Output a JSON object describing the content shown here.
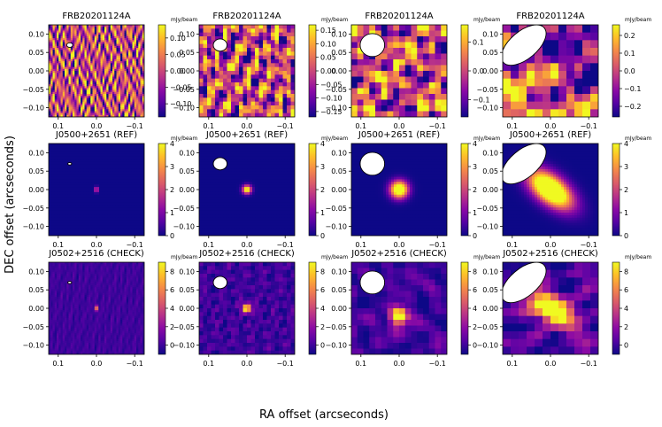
{
  "figure": {
    "xlabel": "RA offset (arcseconds)",
    "ylabel": "DEC offset (arcseconds)",
    "colorbar_unit": "mJy/beam",
    "colormap": [
      "#0d0887",
      "#5402a3",
      "#8b0aa5",
      "#b83289",
      "#db5c68",
      "#f48849",
      "#febd2a",
      "#f0f921"
    ]
  },
  "chart_data": [
    {
      "type": "heatmap",
      "title": "FRB20201124A",
      "x_ticks": [
        "0.1",
        "0.0",
        "−0.1"
      ],
      "y_ticks": [
        "0.10",
        "0.05",
        "0.00",
        "−0.05",
        "−0.10"
      ],
      "xlim": [
        0.125,
        -0.125
      ],
      "ylim": [
        -0.125,
        0.125
      ],
      "colorbar_ticks": [
        "0.10",
        "0.05",
        "0.00",
        "−0.05",
        "−0.10"
      ],
      "colorbar_range": [
        -0.14,
        0.14
      ],
      "beam": {
        "ra": 0.07,
        "dec": 0.07,
        "major": 0.008,
        "minor": 0.006,
        "angle": 0
      },
      "source": null,
      "texture": {
        "type": "noise",
        "scale": "fine"
      }
    },
    {
      "type": "heatmap",
      "title": "FRB20201124A",
      "x_ticks": [
        "0.1",
        "0.0",
        "−0.1"
      ],
      "y_ticks": [
        "0.10",
        "0.05",
        "0.00",
        "−0.05",
        "−0.10"
      ],
      "xlim": [
        0.125,
        -0.125
      ],
      "ylim": [
        -0.125,
        0.125
      ],
      "colorbar_ticks": [
        "0.15",
        "0.10",
        "0.05",
        "0.00",
        "−0.05",
        "−0.10",
        "−0.15"
      ],
      "colorbar_range": [
        -0.17,
        0.17
      ],
      "beam": {
        "ra": 0.07,
        "dec": 0.07,
        "major": 0.018,
        "minor": 0.016,
        "angle": 0
      },
      "source": null,
      "texture": {
        "type": "noise",
        "scale": "medium"
      }
    },
    {
      "type": "heatmap",
      "title": "FRB20201124A",
      "x_ticks": [
        "0.1",
        "0.0",
        "−0.1"
      ],
      "y_ticks": [
        "0.10",
        "0.05",
        "0.00",
        "−0.05",
        "−0.10"
      ],
      "xlim": [
        0.125,
        -0.125
      ],
      "ylim": [
        -0.125,
        0.125
      ],
      "colorbar_ticks": [
        "0.1",
        "0.0",
        "−0.1"
      ],
      "colorbar_range": [
        -0.16,
        0.16
      ],
      "beam": {
        "ra": 0.07,
        "dec": 0.07,
        "major": 0.032,
        "minor": 0.03,
        "angle": 0
      },
      "source": null,
      "texture": {
        "type": "noise",
        "scale": "coarse"
      }
    },
    {
      "type": "heatmap",
      "title": "FRB20201124A",
      "x_ticks": [
        "0.1",
        "0.0",
        "−0.1"
      ],
      "y_ticks": [
        "0.10",
        "0.05",
        "0.00",
        "−0.05",
        "−0.10"
      ],
      "xlim": [
        0.125,
        -0.125
      ],
      "ylim": [
        -0.125,
        0.125
      ],
      "colorbar_ticks": [
        "0.2",
        "0.1",
        "0.0",
        "−0.1",
        "−0.2"
      ],
      "colorbar_range": [
        -0.26,
        0.26
      ],
      "beam": {
        "ra": 0.07,
        "dec": 0.07,
        "major": 0.07,
        "minor": 0.036,
        "angle": 40
      },
      "source": null,
      "texture": {
        "type": "noise",
        "scale": "verycoarse"
      }
    },
    {
      "type": "heatmap",
      "title": "J0500+2651 (REF)",
      "x_ticks": [
        "0.1",
        "0.0",
        "−0.1"
      ],
      "y_ticks": [
        "0.10",
        "0.05",
        "0.00",
        "−0.05",
        "−0.10"
      ],
      "xlim": [
        0.125,
        -0.125
      ],
      "ylim": [
        -0.125,
        0.125
      ],
      "colorbar_ticks": [
        "4",
        "3",
        "2",
        "1",
        "0"
      ],
      "colorbar_range": [
        0,
        4
      ],
      "beam": {
        "ra": 0.07,
        "dec": 0.07,
        "major": 0.005,
        "minor": 0.003,
        "angle": 0
      },
      "source": {
        "ra": 0.0,
        "dec": 0.0,
        "peak": 4.2,
        "sx": 0.0025,
        "sy": 0.005,
        "angle": 0
      },
      "texture": {
        "type": "flat"
      }
    },
    {
      "type": "heatmap",
      "title": "J0500+2651 (REF)",
      "x_ticks": [
        "0.1",
        "0.0",
        "−0.1"
      ],
      "y_ticks": [
        "0.10",
        "0.05",
        "0.00",
        "−0.05",
        "−0.10"
      ],
      "xlim": [
        0.125,
        -0.125
      ],
      "ylim": [
        -0.125,
        0.125
      ],
      "colorbar_ticks": [
        "4",
        "3",
        "2",
        "1",
        "0"
      ],
      "colorbar_range": [
        0,
        4
      ],
      "beam": {
        "ra": 0.07,
        "dec": 0.07,
        "major": 0.018,
        "minor": 0.016,
        "angle": 0
      },
      "source": {
        "ra": 0.0,
        "dec": 0.0,
        "peak": 4.5,
        "sx": 0.008,
        "sy": 0.008,
        "angle": 0
      },
      "texture": {
        "type": "flat"
      }
    },
    {
      "type": "heatmap",
      "title": "J0500+2651 (REF)",
      "x_ticks": [
        "0.1",
        "0.0",
        "−0.1"
      ],
      "y_ticks": [
        "0.10",
        "0.05",
        "0.00",
        "−0.05",
        "−0.10"
      ],
      "xlim": [
        0.125,
        -0.125
      ],
      "ylim": [
        -0.125,
        0.125
      ],
      "colorbar_ticks": [
        "4",
        "3",
        "2",
        "1",
        "0"
      ],
      "colorbar_range": [
        0,
        4
      ],
      "beam": {
        "ra": 0.07,
        "dec": 0.07,
        "major": 0.032,
        "minor": 0.03,
        "angle": 0
      },
      "source": {
        "ra": 0.0,
        "dec": 0.0,
        "peak": 5.5,
        "sx": 0.016,
        "sy": 0.016,
        "angle": 0
      },
      "texture": {
        "type": "flat"
      }
    },
    {
      "type": "heatmap",
      "title": "J0500+2651 (REF)",
      "x_ticks": [
        "0.1",
        "0.0",
        "−0.1"
      ],
      "y_ticks": [
        "0.10",
        "0.05",
        "0.00",
        "−0.05",
        "−0.10"
      ],
      "xlim": [
        0.125,
        -0.125
      ],
      "ylim": [
        -0.125,
        0.125
      ],
      "colorbar_ticks": [
        "4",
        "3",
        "2",
        "1",
        "0"
      ],
      "colorbar_range": [
        0,
        4
      ],
      "beam": {
        "ra": 0.07,
        "dec": 0.07,
        "major": 0.07,
        "minor": 0.036,
        "angle": 40
      },
      "source": {
        "ra": 0.0,
        "dec": 0.0,
        "peak": 6.5,
        "sx": 0.046,
        "sy": 0.024,
        "angle": 40
      },
      "texture": {
        "type": "flat"
      }
    },
    {
      "type": "heatmap",
      "title": "J0502+2516 (CHECK)",
      "x_ticks": [
        "0.1",
        "0.0",
        "−0.1"
      ],
      "y_ticks": [
        "0.10",
        "0.05",
        "0.00",
        "−0.05",
        "−0.10"
      ],
      "xlim": [
        0.125,
        -0.125
      ],
      "ylim": [
        -0.125,
        0.125
      ],
      "colorbar_ticks": [
        "8",
        "6",
        "4",
        "2",
        "0"
      ],
      "colorbar_range": [
        -1,
        9
      ],
      "beam": {
        "ra": 0.07,
        "dec": 0.07,
        "major": 0.005,
        "minor": 0.003,
        "angle": 0
      },
      "source": {
        "ra": 0.0,
        "dec": 0.0,
        "peak": 9.5,
        "sx": 0.0025,
        "sy": 0.005,
        "angle": 0
      },
      "texture": {
        "type": "noise",
        "scale": "fine",
        "amp": 0.4
      }
    },
    {
      "type": "heatmap",
      "title": "J0502+2516 (CHECK)",
      "x_ticks": [
        "0.1",
        "0.0",
        "−0.1"
      ],
      "y_ticks": [
        "0.10",
        "0.05",
        "0.00",
        "−0.05",
        "−0.10"
      ],
      "xlim": [
        0.125,
        -0.125
      ],
      "ylim": [
        -0.125,
        0.125
      ],
      "colorbar_ticks": [
        "8",
        "6",
        "4",
        "2",
        "0"
      ],
      "colorbar_range": [
        -1,
        9
      ],
      "beam": {
        "ra": 0.07,
        "dec": 0.07,
        "major": 0.018,
        "minor": 0.016,
        "angle": 0
      },
      "source": {
        "ra": 0.0,
        "dec": 0.0,
        "peak": 11,
        "sx": 0.008,
        "sy": 0.008,
        "angle": 0
      },
      "texture": {
        "type": "noise",
        "scale": "medium",
        "amp": 0.8
      }
    },
    {
      "type": "heatmap",
      "title": "J0502+2516 (CHECK)",
      "x_ticks": [
        "0.1",
        "0.0",
        "−0.1"
      ],
      "y_ticks": [
        "0.10",
        "0.05",
        "0.00",
        "−0.05",
        "−0.10"
      ],
      "xlim": [
        0.125,
        -0.125
      ],
      "ylim": [
        -0.125,
        0.125
      ],
      "colorbar_ticks": [
        "8",
        "6",
        "4",
        "2",
        "0"
      ],
      "colorbar_range": [
        -1,
        9
      ],
      "beam": {
        "ra": 0.07,
        "dec": 0.07,
        "major": 0.032,
        "minor": 0.03,
        "angle": 0
      },
      "source": {
        "ra": 0.0,
        "dec": -0.02,
        "peak": 12,
        "sx": 0.016,
        "sy": 0.016,
        "angle": 0
      },
      "texture": {
        "type": "noise",
        "scale": "coarse",
        "amp": 1.0
      }
    },
    {
      "type": "heatmap",
      "title": "J0502+2516 (CHECK)",
      "x_ticks": [
        "0.1",
        "0.0",
        "−0.1"
      ],
      "y_ticks": [
        "0.10",
        "0.05",
        "0.00",
        "−0.05",
        "−0.10"
      ],
      "xlim": [
        0.125,
        -0.125
      ],
      "ylim": [
        -0.125,
        0.125
      ],
      "colorbar_ticks": [
        "8",
        "6",
        "4",
        "2",
        "0"
      ],
      "colorbar_range": [
        -1,
        9
      ],
      "beam": {
        "ra": 0.07,
        "dec": 0.07,
        "major": 0.07,
        "minor": 0.036,
        "angle": 40
      },
      "source": {
        "ra": 0.0,
        "dec": 0.0,
        "peak": 13,
        "sx": 0.05,
        "sy": 0.024,
        "angle": 40
      },
      "texture": {
        "type": "noise",
        "scale": "verycoarse",
        "amp": 1.5
      }
    }
  ]
}
